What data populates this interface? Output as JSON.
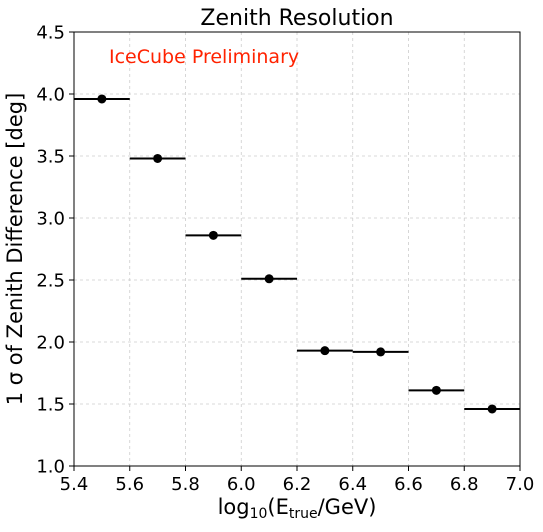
{
  "chart_data": {
    "type": "scatter",
    "title": "Zenith Resolution",
    "annotation": "IceCube Preliminary",
    "annotation_color": "#ff2200",
    "xlabel_parts": {
      "prefix": "log",
      "sub1": "10",
      "mid": "(E",
      "sub2": "true",
      "suffix": "/GeV)"
    },
    "ylabel": "1 σ of Zenith Difference [deg]",
    "xlim": [
      5.4,
      7.0
    ],
    "ylim": [
      1.0,
      4.5
    ],
    "xticks": [
      "5.4",
      "5.6",
      "5.8",
      "6.0",
      "6.2",
      "6.4",
      "6.6",
      "6.8",
      "7.0"
    ],
    "yticks": [
      "1.0",
      "1.5",
      "2.0",
      "2.5",
      "3.0",
      "3.5",
      "4.0",
      "4.5"
    ],
    "grid": true,
    "marker_color": "#000000",
    "points": [
      {
        "x": 5.5,
        "y": 3.96,
        "xerr": 0.1
      },
      {
        "x": 5.7,
        "y": 3.48,
        "xerr": 0.1
      },
      {
        "x": 5.9,
        "y": 2.86,
        "xerr": 0.1
      },
      {
        "x": 6.1,
        "y": 2.51,
        "xerr": 0.1
      },
      {
        "x": 6.3,
        "y": 1.93,
        "xerr": 0.1
      },
      {
        "x": 6.5,
        "y": 1.92,
        "xerr": 0.1
      },
      {
        "x": 6.7,
        "y": 1.61,
        "xerr": 0.1
      },
      {
        "x": 6.9,
        "y": 1.46,
        "xerr": 0.1
      }
    ]
  }
}
